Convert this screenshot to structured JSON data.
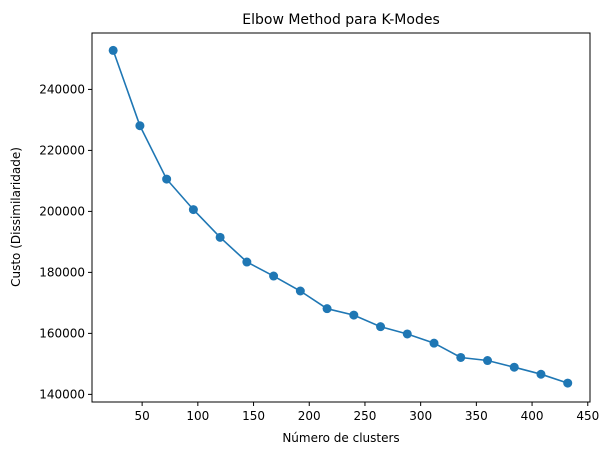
{
  "chart_data": {
    "type": "line",
    "title": "Elbow Method para K-Modes",
    "xlabel": "Número de clusters",
    "ylabel": "Custo (Dissimilaridade)",
    "xlim": [
      5,
      452
    ],
    "ylim": [
      137500,
      258500
    ],
    "x_ticks": [
      50,
      100,
      150,
      200,
      250,
      300,
      350,
      400,
      450
    ],
    "y_ticks": [
      140000,
      160000,
      180000,
      200000,
      220000,
      240000
    ],
    "grid": false,
    "marker": "circle",
    "color": "#1f77b4",
    "series": [
      {
        "x": [
          24,
          48,
          72,
          96,
          120,
          144,
          168,
          192,
          216,
          240,
          264,
          288,
          312,
          336,
          360,
          384,
          408,
          432
        ],
        "y": [
          252800,
          228100,
          210600,
          200600,
          191500,
          183400,
          178800,
          173900,
          168100,
          166000,
          162200,
          159800,
          156800,
          152100,
          151100,
          148900,
          146600,
          143700
        ]
      }
    ]
  }
}
